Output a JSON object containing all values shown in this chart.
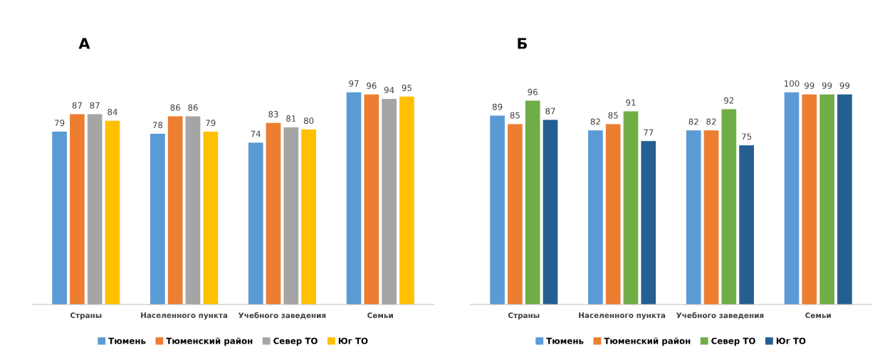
{
  "chart_data": [
    {
      "type": "bar",
      "title": "А",
      "categories": [
        "Страны",
        "Населенного пункта",
        "Учебного заведения",
        "Семьи"
      ],
      "data_labels": true,
      "legend": "bottom",
      "grid": false,
      "tick_labels": "x",
      "series": [
        {
          "name": "Тюмень",
          "color": "#5b9bd5",
          "values": [
            79,
            78,
            74,
            97
          ]
        },
        {
          "name": "Тюменский район",
          "color": "#ed7d31",
          "values": [
            87,
            86,
            83,
            96
          ]
        },
        {
          "name": "Север ТО",
          "color": "#a5a5a5",
          "values": [
            87,
            86,
            81,
            94
          ]
        },
        {
          "name": "Юг ТО",
          "color": "#ffc000",
          "values": [
            84,
            79,
            80,
            95
          ]
        }
      ]
    },
    {
      "type": "bar",
      "title": "Б",
      "categories": [
        "Страны",
        "Населенного пункта",
        "Учебного заведения",
        "Семьи"
      ],
      "data_labels": true,
      "legend": "bottom",
      "grid": false,
      "tick_labels": "x",
      "series": [
        {
          "name": "Тюмень",
          "color": "#5b9bd5",
          "values": [
            89,
            82,
            82,
            100
          ]
        },
        {
          "name": "Тюменский район",
          "color": "#ed7d31",
          "values": [
            85,
            85,
            82,
            99
          ]
        },
        {
          "name": "Север ТО",
          "color": "#70ad47",
          "values": [
            96,
            91,
            92,
            99
          ]
        },
        {
          "name": "Юг ТО",
          "color": "#255e91",
          "values": [
            87,
            77,
            75,
            99
          ]
        }
      ]
    }
  ]
}
